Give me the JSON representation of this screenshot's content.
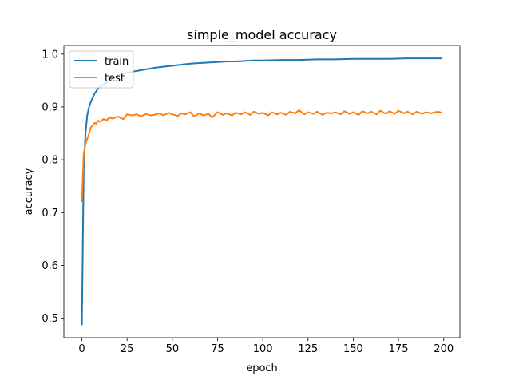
{
  "chart_data": {
    "type": "line",
    "title": "simple_model accuracy",
    "xlabel": "epoch",
    "ylabel": "accuracy",
    "xlim": [
      -9.95,
      208.95
    ],
    "ylim": [
      0.4632,
      1.0163
    ],
    "xticks": [
      0,
      25,
      50,
      75,
      100,
      125,
      150,
      175,
      200
    ],
    "yticks": [
      0.5,
      0.6,
      0.7,
      0.8,
      0.9,
      1.0
    ],
    "xtick_labels": [
      "0",
      "25",
      "50",
      "75",
      "100",
      "125",
      "150",
      "175",
      "200"
    ],
    "ytick_labels": [
      "0.5",
      "0.6",
      "0.7",
      "0.8",
      "0.9",
      "1.0"
    ],
    "legend_position": "upper-left",
    "grid": false,
    "series": [
      {
        "name": "train",
        "color": "#1f77b4",
        "points": [
          [
            0,
            0.487
          ],
          [
            1,
            0.78
          ],
          [
            2,
            0.85
          ],
          [
            3,
            0.885
          ],
          [
            4,
            0.9
          ],
          [
            5,
            0.91
          ],
          [
            6,
            0.918
          ],
          [
            7,
            0.925
          ],
          [
            8,
            0.93
          ],
          [
            9,
            0.935
          ],
          [
            10,
            0.938
          ],
          [
            12,
            0.943
          ],
          [
            15,
            0.95
          ],
          [
            18,
            0.956
          ],
          [
            20,
            0.96
          ],
          [
            25,
            0.965
          ],
          [
            30,
            0.968
          ],
          [
            35,
            0.971
          ],
          [
            40,
            0.974
          ],
          [
            45,
            0.976
          ],
          [
            50,
            0.978
          ],
          [
            55,
            0.98
          ],
          [
            60,
            0.982
          ],
          [
            65,
            0.983
          ],
          [
            70,
            0.984
          ],
          [
            75,
            0.985
          ],
          [
            80,
            0.986
          ],
          [
            85,
            0.986
          ],
          [
            90,
            0.987
          ],
          [
            95,
            0.988
          ],
          [
            100,
            0.988
          ],
          [
            110,
            0.989
          ],
          [
            120,
            0.989
          ],
          [
            130,
            0.99
          ],
          [
            140,
            0.99
          ],
          [
            150,
            0.991
          ],
          [
            160,
            0.991
          ],
          [
            170,
            0.991
          ],
          [
            180,
            0.992
          ],
          [
            190,
            0.992
          ],
          [
            199,
            0.992
          ]
        ]
      },
      {
        "name": "test",
        "color": "#ff7f0e",
        "points": [
          [
            0,
            0.72
          ],
          [
            1,
            0.81
          ],
          [
            2,
            0.83
          ],
          [
            3,
            0.84
          ],
          [
            4,
            0.85
          ],
          [
            5,
            0.862
          ],
          [
            6,
            0.865
          ],
          [
            7,
            0.87
          ],
          [
            8,
            0.868
          ],
          [
            9,
            0.874
          ],
          [
            10,
            0.872
          ],
          [
            12,
            0.877
          ],
          [
            14,
            0.875
          ],
          [
            15,
            0.88
          ],
          [
            17,
            0.878
          ],
          [
            20,
            0.882
          ],
          [
            23,
            0.877
          ],
          [
            25,
            0.886
          ],
          [
            28,
            0.884
          ],
          [
            30,
            0.886
          ],
          [
            33,
            0.882
          ],
          [
            35,
            0.887
          ],
          [
            38,
            0.884
          ],
          [
            40,
            0.885
          ],
          [
            43,
            0.888
          ],
          [
            45,
            0.884
          ],
          [
            48,
            0.889
          ],
          [
            50,
            0.886
          ],
          [
            53,
            0.883
          ],
          [
            55,
            0.888
          ],
          [
            57,
            0.886
          ],
          [
            60,
            0.89
          ],
          [
            62,
            0.882
          ],
          [
            65,
            0.888
          ],
          [
            67,
            0.884
          ],
          [
            70,
            0.887
          ],
          [
            72,
            0.88
          ],
          [
            75,
            0.89
          ],
          [
            78,
            0.885
          ],
          [
            80,
            0.888
          ],
          [
            83,
            0.884
          ],
          [
            85,
            0.889
          ],
          [
            88,
            0.886
          ],
          [
            90,
            0.89
          ],
          [
            93,
            0.885
          ],
          [
            95,
            0.891
          ],
          [
            98,
            0.887
          ],
          [
            100,
            0.889
          ],
          [
            103,
            0.884
          ],
          [
            105,
            0.89
          ],
          [
            108,
            0.886
          ],
          [
            110,
            0.889
          ],
          [
            113,
            0.885
          ],
          [
            115,
            0.891
          ],
          [
            118,
            0.888
          ],
          [
            120,
            0.894
          ],
          [
            123,
            0.886
          ],
          [
            125,
            0.89
          ],
          [
            128,
            0.887
          ],
          [
            130,
            0.891
          ],
          [
            133,
            0.885
          ],
          [
            135,
            0.889
          ],
          [
            138,
            0.888
          ],
          [
            140,
            0.89
          ],
          [
            143,
            0.886
          ],
          [
            145,
            0.892
          ],
          [
            148,
            0.887
          ],
          [
            150,
            0.89
          ],
          [
            153,
            0.885
          ],
          [
            155,
            0.892
          ],
          [
            158,
            0.888
          ],
          [
            160,
            0.891
          ],
          [
            163,
            0.886
          ],
          [
            165,
            0.893
          ],
          [
            168,
            0.887
          ],
          [
            170,
            0.892
          ],
          [
            173,
            0.887
          ],
          [
            175,
            0.893
          ],
          [
            178,
            0.888
          ],
          [
            180,
            0.891
          ],
          [
            183,
            0.886
          ],
          [
            185,
            0.891
          ],
          [
            188,
            0.887
          ],
          [
            190,
            0.89
          ],
          [
            193,
            0.888
          ],
          [
            195,
            0.89
          ],
          [
            197,
            0.891
          ],
          [
            199,
            0.889
          ]
        ]
      }
    ]
  }
}
